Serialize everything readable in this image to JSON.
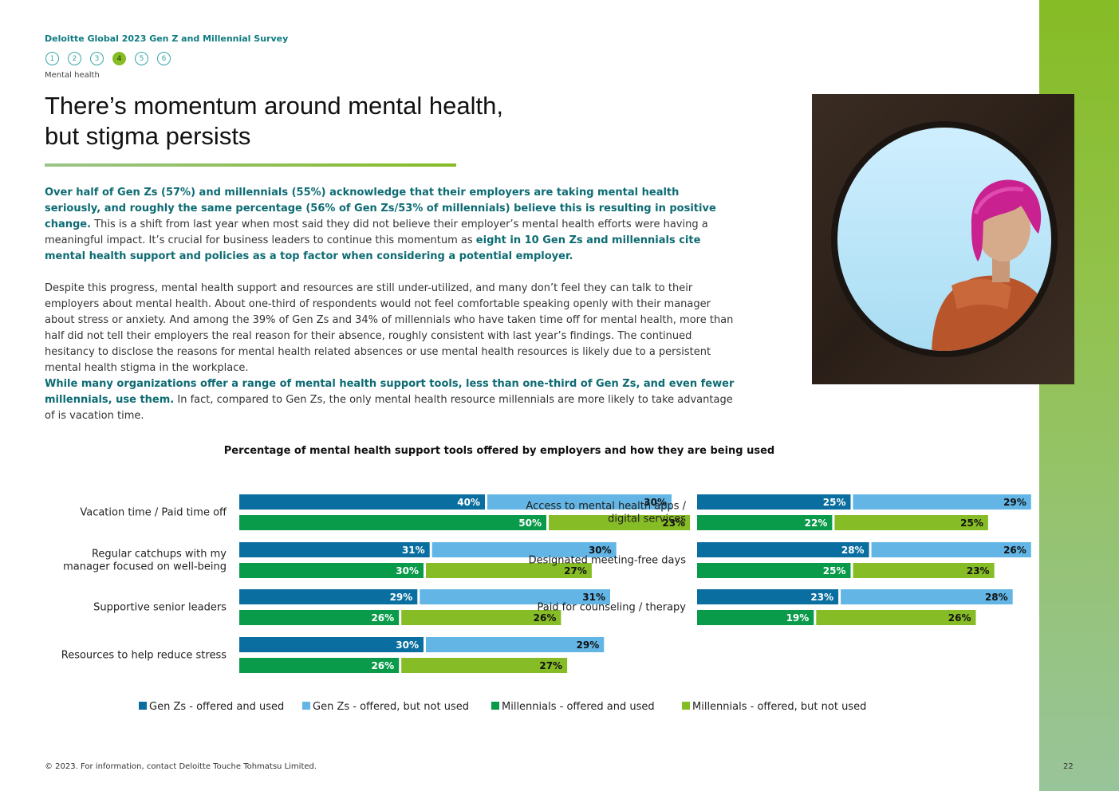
{
  "header": {
    "survey_title": "Deloitte Global 2023 Gen Z and Millennial Survey",
    "nav": [
      "1",
      "2",
      "3",
      "4",
      "5",
      "6"
    ],
    "active_nav": "4",
    "section_label": "Mental health"
  },
  "heading": {
    "line1": "There’s momentum around mental health,",
    "line2": "but stigma persists"
  },
  "paragraphs": {
    "p1_bold": "Over half of Gen Zs (57%) and millennials (55%) acknowledge that their employers are taking mental health seriously, and roughly the same percentage (56% of Gen Zs/53% of millennials) believe this is resulting in positive change.",
    "p1_text": " This is a shift from last year when most said they did not believe their employer’s mental health efforts were having a meaningful impact. It’s crucial for business leaders to continue this momentum as ",
    "p1_bold2": "eight in 10 Gen Zs and millennials cite mental health support and policies as a top factor when considering a potential employer.",
    "p2_text": "Despite this progress, mental health support and resources are still under-utilized, and many don’t feel they can talk to their employers about mental health. About one-third of respondents would not feel comfortable speaking openly with their manager about stress or anxiety. And among the 39% of Gen Zs and 34% of millennials who have taken time off for mental health, more than half did not tell their employers the real reason for their absence, roughly consistent with last year’s findings. The continued hesitancy to disclose the reasons for mental health related absences or use mental health resources is likely due to a persistent mental health stigma in the workplace.",
    "p3_bold": "While many organizations offer a range of mental health support tools, less than one-third of Gen Zs, and even fewer millennials, use them.",
    "p3_text": " In fact, compared to Gen Zs, the only mental health resource millennials are more likely to take advantage of is vacation time."
  },
  "colors": {
    "genz_used": "#0a6fa0",
    "genz_not_used": "#62b5e5",
    "mill_used": "#0a9b4a",
    "mill_not_used": "#86bc25"
  },
  "chart_data": {
    "type": "bar",
    "orientation": "horizontal",
    "stacked": true,
    "title": "Percentage of mental health support tools offered by employers and how they are being used",
    "series": [
      {
        "name": "Gen Zs - offered and used",
        "group": "Gen Zs",
        "color": "#0a6fa0"
      },
      {
        "name": "Gen Zs - offered, but not used",
        "group": "Gen Zs",
        "color": "#62b5e5"
      },
      {
        "name": "Millennials - offered and used",
        "group": "Millennials",
        "color": "#0a9b4a"
      },
      {
        "name": "Millennials - offered, but not used",
        "group": "Millennials",
        "color": "#86bc25"
      }
    ],
    "panels": [
      {
        "items": [
          {
            "label": [
              "Vacation time / Paid time off"
            ],
            "genz": [
              40,
              30
            ],
            "mill": [
              50,
              23
            ]
          },
          {
            "label": [
              "Regular catchups with my",
              "manager focused on well-being"
            ],
            "genz": [
              31,
              30
            ],
            "mill": [
              30,
              27
            ]
          },
          {
            "label": [
              "Supportive senior leaders"
            ],
            "genz": [
              29,
              31
            ],
            "mill": [
              26,
              26
            ]
          },
          {
            "label": [
              "Resources to help reduce stress"
            ],
            "genz": [
              30,
              29
            ],
            "mill": [
              26,
              27
            ]
          }
        ]
      },
      {
        "items": [
          {
            "label": [
              "Access to mental health apps /",
              "digital services"
            ],
            "genz": [
              25,
              29
            ],
            "mill": [
              22,
              25
            ]
          },
          {
            "label": [
              "Designated meeting-free days"
            ],
            "genz": [
              28,
              26
            ],
            "mill": [
              25,
              23
            ]
          },
          {
            "label": [
              "Paid for counseling / therapy"
            ],
            "genz": [
              23,
              28
            ],
            "mill": [
              19,
              26
            ]
          }
        ]
      }
    ],
    "value_suffix": "%"
  },
  "footer": {
    "copyright": "© 2023. For information, contact Deloitte Touche Tohmatsu Limited.",
    "page_number": "22"
  }
}
